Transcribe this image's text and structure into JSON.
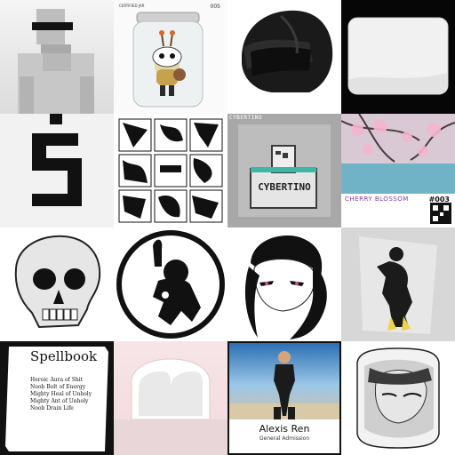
{
  "gallery": {
    "tiles": [
      {
        "name": "block-figure-sunglasses"
      },
      {
        "name": "jar-creature",
        "badge_top": "005",
        "label_top": "CERTIFIED JAR",
        "caption_bottom": ""
      },
      {
        "name": "black-motorcycle-helmet"
      },
      {
        "name": "white-rounded-card"
      },
      {
        "name": "pixel-number-five"
      },
      {
        "name": "abstract-black-ink-grid"
      },
      {
        "name": "cybertino-box",
        "logo_text": "CYBERTINO",
        "frame_text": "CYBERTINO"
      },
      {
        "name": "cherry-blossom",
        "title": "CHERRY BLOSSOM",
        "number": "#003"
      },
      {
        "name": "realistic-skull"
      },
      {
        "name": "circle-silhouette-logo"
      },
      {
        "name": "anime-girl-sketch"
      },
      {
        "name": "golden-silhouette-figure"
      },
      {
        "name": "spellbook-card",
        "title": "Spellbook",
        "items": [
          "Heroic Aura of Shit",
          "Noob Bolt of Energy",
          "Mighty Heal of Unholy",
          "Mighty Ant of Unholy",
          "Noob Drain Life"
        ]
      },
      {
        "name": "pink-arches-room"
      },
      {
        "name": "alexis-ren-ticket",
        "person": "Alexis Ren",
        "ticket_type": "General Admission"
      },
      {
        "name": "sketch-portrait-frame"
      }
    ]
  },
  "colors": {
    "cyber_teal": "#3fb6a8",
    "cyber_bg": "#a8a8a8",
    "pink_arch": "#f3d9dc",
    "gold": "#f0d24a"
  }
}
